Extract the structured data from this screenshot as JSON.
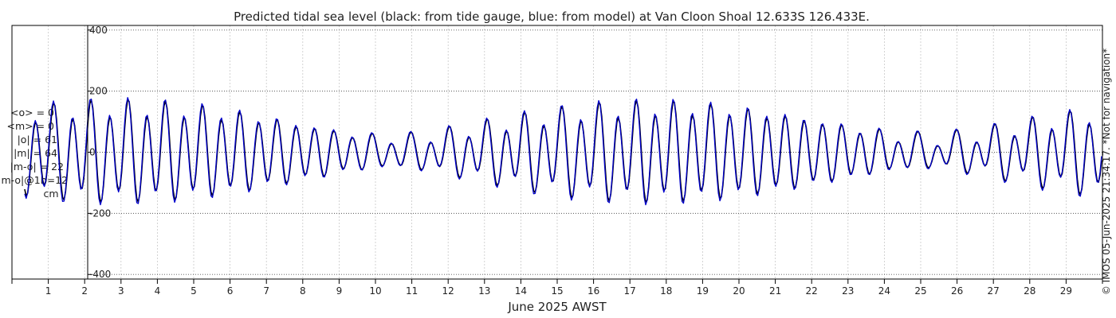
{
  "chart_data": {
    "type": "line",
    "title": "Predicted tidal sea level (black: from tide gauge, blue: from model) at Van Cloon Shoal 12.633S 126.433E.",
    "xlabel": "June 2025 AWST",
    "ylabel": "",
    "xlim": [
      0,
      30
    ],
    "ylim": [
      -415,
      415
    ],
    "yticks": [
      400,
      200,
      0,
      -200,
      -400
    ],
    "yticks_text": [
      "400",
      "200",
      "0",
      "-200",
      "-400"
    ],
    "xticks": [
      1,
      2,
      3,
      4,
      5,
      6,
      7,
      8,
      9,
      10,
      11,
      12,
      13,
      14,
      15,
      16,
      17,
      18,
      19,
      20,
      21,
      22,
      23,
      24,
      25,
      26,
      27,
      28,
      29
    ],
    "xticks_text": [
      "1",
      "2",
      "3",
      "4",
      "5",
      "6",
      "7",
      "8",
      "9",
      "10",
      "11",
      "12",
      "13",
      "14",
      "15",
      "16",
      "17",
      "18",
      "19",
      "20",
      "21",
      "22",
      "23",
      "24",
      "25",
      "26",
      "27",
      "28",
      "29"
    ],
    "grid": true,
    "series": [
      {
        "color": "#000000",
        "values": []
      },
      {
        "color": "#0000cc",
        "values": []
      }
    ],
    "stats": [
      "<o> = 0",
      "<m> = 0",
      "|o| = 61",
      "|m| = 64",
      "|m-o| = 22",
      "|m-o|@1h=12",
      "cm"
    ],
    "credit": "© IMOS 05-Jun-2025 21:34:17. *Not for navigation*"
  }
}
